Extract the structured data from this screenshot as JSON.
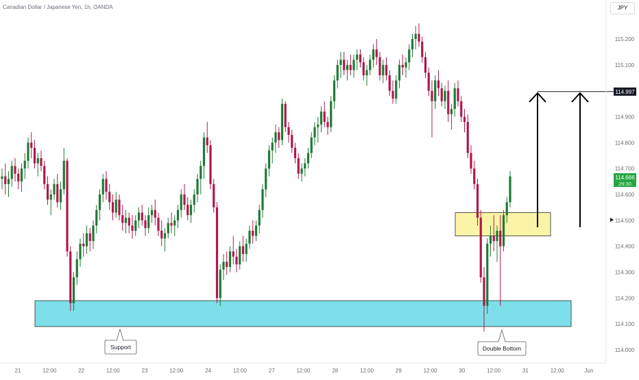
{
  "header": {
    "symbol_title": "Canadian Dollar / Japanese Yen, 1h, OANDA"
  },
  "toolbar": {
    "currency_button": "JPY"
  },
  "price_axis": {
    "ticks": [
      "115.200",
      "115.100",
      "114.900",
      "114.800",
      "114.700",
      "114.600",
      "114.500",
      "114.400",
      "114.300",
      "114.200",
      "114.100",
      "114.000"
    ],
    "badges": {
      "target": "114.997",
      "last_price": "114.666",
      "countdown": "29:30"
    },
    "colors": {
      "target": "#131722",
      "last_price": "#26a641"
    }
  },
  "time_axis": {
    "ticks": [
      "21",
      "12:00",
      "22",
      "12:00",
      "23",
      "12:00",
      "24",
      "12:00",
      "27",
      "12:00",
      "28",
      "12:00",
      "29",
      "12:00",
      "30",
      "12:00",
      "31",
      "12:00",
      "Jun"
    ]
  },
  "annotations": {
    "support_label": "Support",
    "double_bottom_label": "Double Bottom"
  },
  "colors": {
    "up_candle": "#1f7a34",
    "down_candle": "#b0174c",
    "support_zone": "#7ddfea",
    "resistance_zone": "#fbf3a6"
  },
  "chart_data": {
    "type": "candlestick",
    "title": "Canadian Dollar / Japanese Yen, 1h, OANDA",
    "ylim": [
      113.98,
      115.28
    ],
    "zones": [
      {
        "label": "Support",
        "y_range": [
          114.09,
          114.19
        ]
      },
      {
        "label": "",
        "y_range": [
          114.44,
          114.53
        ]
      }
    ],
    "target_level": 114.997,
    "last_price": 114.666,
    "series": [
      {
        "values": [
          [
            114.66,
            114.7,
            114.62,
            114.67
          ],
          [
            114.67,
            114.72,
            114.6,
            114.64
          ],
          [
            114.64,
            114.69,
            114.59,
            114.66
          ],
          [
            114.66,
            114.73,
            114.63,
            114.71
          ],
          [
            114.71,
            114.74,
            114.65,
            114.68
          ],
          [
            114.68,
            114.7,
            114.62,
            114.65
          ],
          [
            114.65,
            114.72,
            114.61,
            114.7
          ],
          [
            114.7,
            114.76,
            114.66,
            114.73
          ],
          [
            114.73,
            114.82,
            114.7,
            114.8
          ],
          [
            114.8,
            114.84,
            114.74,
            114.78
          ],
          [
            114.78,
            114.81,
            114.7,
            114.72
          ],
          [
            114.72,
            114.76,
            114.67,
            114.74
          ],
          [
            114.74,
            114.77,
            114.69,
            114.71
          ],
          [
            114.71,
            114.73,
            114.62,
            114.64
          ],
          [
            114.64,
            114.67,
            114.56,
            114.58
          ],
          [
            114.58,
            114.62,
            114.52,
            114.6
          ],
          [
            114.6,
            114.66,
            114.58,
            114.64
          ],
          [
            114.64,
            114.68,
            114.55,
            114.57
          ],
          [
            114.57,
            114.65,
            114.54,
            114.62
          ],
          [
            114.62,
            114.78,
            114.6,
            114.73
          ],
          [
            114.73,
            114.74,
            114.36,
            114.38
          ],
          [
            114.38,
            114.4,
            114.15,
            114.18
          ],
          [
            114.18,
            114.3,
            114.15,
            114.28
          ],
          [
            114.28,
            114.38,
            114.25,
            114.35
          ],
          [
            114.35,
            114.43,
            114.32,
            114.41
          ],
          [
            114.41,
            114.45,
            114.36,
            114.4
          ],
          [
            114.4,
            114.48,
            114.37,
            114.45
          ],
          [
            114.45,
            114.47,
            114.38,
            114.42
          ],
          [
            114.42,
            114.5,
            114.39,
            114.48
          ],
          [
            114.48,
            114.56,
            114.45,
            114.54
          ],
          [
            114.54,
            114.62,
            114.5,
            114.6
          ],
          [
            114.6,
            114.68,
            114.57,
            114.66
          ],
          [
            114.66,
            114.69,
            114.58,
            114.61
          ],
          [
            114.61,
            114.64,
            114.54,
            114.57
          ],
          [
            114.57,
            114.6,
            114.5,
            114.53
          ],
          [
            114.53,
            114.61,
            114.51,
            114.58
          ],
          [
            114.58,
            114.6,
            114.5,
            114.52
          ],
          [
            114.52,
            114.56,
            114.46,
            114.49
          ],
          [
            114.49,
            114.54,
            114.45,
            114.51
          ],
          [
            114.51,
            114.53,
            114.45,
            114.48
          ],
          [
            114.48,
            114.52,
            114.43,
            114.46
          ],
          [
            114.46,
            114.52,
            114.44,
            114.5
          ],
          [
            114.5,
            114.55,
            114.47,
            114.53
          ],
          [
            114.53,
            114.56,
            114.48,
            114.5
          ],
          [
            114.5,
            114.52,
            114.44,
            114.47
          ],
          [
            114.47,
            114.55,
            114.45,
            114.52
          ],
          [
            114.52,
            114.56,
            114.49,
            114.54
          ],
          [
            114.54,
            114.58,
            114.48,
            114.51
          ],
          [
            114.51,
            114.53,
            114.44,
            114.46
          ],
          [
            114.46,
            114.5,
            114.4,
            114.43
          ],
          [
            114.43,
            114.47,
            114.38,
            114.45
          ],
          [
            114.45,
            114.51,
            114.43,
            114.49
          ],
          [
            114.49,
            114.53,
            114.45,
            114.48
          ],
          [
            114.48,
            114.52,
            114.44,
            114.5
          ],
          [
            114.5,
            114.56,
            114.47,
            114.54
          ],
          [
            114.54,
            114.62,
            114.51,
            114.6
          ],
          [
            114.6,
            114.64,
            114.54,
            114.56
          ],
          [
            114.56,
            114.59,
            114.5,
            114.52
          ],
          [
            114.52,
            114.58,
            114.49,
            114.56
          ],
          [
            114.56,
            114.62,
            114.53,
            114.6
          ],
          [
            114.6,
            114.68,
            114.57,
            114.66
          ],
          [
            114.66,
            114.73,
            114.6,
            114.71
          ],
          [
            114.71,
            114.84,
            114.66,
            114.82
          ],
          [
            114.82,
            114.88,
            114.76,
            114.79
          ],
          [
            114.79,
            114.81,
            114.62,
            114.64
          ],
          [
            114.64,
            114.66,
            114.53,
            114.55
          ],
          [
            114.55,
            114.57,
            114.18,
            114.2
          ],
          [
            114.2,
            114.33,
            114.17,
            114.31
          ],
          [
            114.31,
            114.37,
            114.27,
            114.34
          ],
          [
            114.34,
            114.38,
            114.29,
            114.32
          ],
          [
            114.32,
            114.4,
            114.3,
            114.38
          ],
          [
            114.38,
            114.44,
            114.33,
            114.36
          ],
          [
            114.36,
            114.39,
            114.3,
            114.33
          ],
          [
            114.33,
            114.42,
            114.31,
            114.4
          ],
          [
            114.4,
            114.44,
            114.34,
            114.37
          ],
          [
            114.37,
            114.43,
            114.34,
            114.41
          ],
          [
            114.41,
            114.48,
            114.39,
            114.46
          ],
          [
            114.46,
            114.5,
            114.41,
            114.44
          ],
          [
            114.44,
            114.5,
            114.42,
            114.48
          ],
          [
            114.48,
            114.56,
            114.45,
            114.54
          ],
          [
            114.54,
            114.64,
            114.51,
            114.62
          ],
          [
            114.62,
            114.72,
            114.59,
            114.7
          ],
          [
            114.7,
            114.79,
            114.67,
            114.77
          ],
          [
            114.77,
            114.82,
            114.72,
            114.8
          ],
          [
            114.8,
            114.87,
            114.76,
            114.84
          ],
          [
            114.84,
            114.86,
            114.78,
            114.81
          ],
          [
            114.81,
            114.97,
            114.79,
            114.95
          ],
          [
            114.95,
            114.96,
            114.84,
            114.86
          ],
          [
            114.86,
            114.88,
            114.8,
            114.83
          ],
          [
            114.83,
            114.85,
            114.76,
            114.78
          ],
          [
            114.78,
            114.8,
            114.72,
            114.74
          ],
          [
            114.74,
            114.76,
            114.66,
            114.68
          ],
          [
            114.68,
            114.72,
            114.65,
            114.7
          ],
          [
            114.7,
            114.74,
            114.67,
            114.72
          ],
          [
            114.72,
            114.78,
            114.7,
            114.76
          ],
          [
            114.76,
            114.84,
            114.74,
            114.82
          ],
          [
            114.82,
            114.88,
            114.79,
            114.86
          ],
          [
            114.86,
            114.9,
            114.8,
            114.87
          ],
          [
            114.87,
            114.94,
            114.84,
            114.92
          ],
          [
            114.92,
            114.96,
            114.86,
            114.88
          ],
          [
            114.88,
            114.9,
            114.83,
            114.86
          ],
          [
            114.86,
            114.98,
            114.84,
            114.96
          ],
          [
            114.96,
            115.06,
            114.93,
            115.04
          ],
          [
            115.04,
            115.12,
            115.01,
            115.1
          ],
          [
            115.1,
            115.15,
            115.05,
            115.12
          ],
          [
            115.12,
            115.15,
            115.06,
            115.08
          ],
          [
            115.08,
            115.12,
            115.04,
            115.1
          ],
          [
            115.1,
            115.14,
            115.06,
            115.08
          ],
          [
            115.08,
            115.14,
            115.05,
            115.12
          ],
          [
            115.12,
            115.16,
            115.08,
            115.14
          ],
          [
            115.14,
            115.16,
            115.09,
            115.11
          ],
          [
            115.11,
            115.13,
            115.04,
            115.06
          ],
          [
            115.06,
            115.1,
            115.02,
            115.08
          ],
          [
            115.08,
            115.14,
            115.06,
            115.12
          ],
          [
            115.12,
            115.18,
            115.09,
            115.16
          ],
          [
            115.16,
            115.2,
            115.1,
            115.13
          ],
          [
            115.13,
            115.15,
            115.04,
            115.06
          ],
          [
            115.06,
            115.12,
            115.03,
            115.1
          ],
          [
            115.1,
            115.13,
            115.04,
            115.06
          ],
          [
            115.06,
            115.08,
            114.98,
            115.0
          ],
          [
            115.0,
            115.04,
            114.95,
            114.97
          ],
          [
            114.97,
            115.06,
            114.95,
            115.04
          ],
          [
            115.04,
            115.12,
            115.01,
            115.1
          ],
          [
            115.1,
            115.14,
            115.06,
            115.09
          ],
          [
            115.09,
            115.13,
            115.05,
            115.11
          ],
          [
            115.11,
            115.18,
            115.08,
            115.16
          ],
          [
            115.16,
            115.22,
            115.13,
            115.2
          ],
          [
            115.2,
            115.25,
            115.16,
            115.22
          ],
          [
            115.22,
            115.26,
            115.17,
            115.19
          ],
          [
            115.19,
            115.21,
            115.11,
            115.13
          ],
          [
            115.13,
            115.15,
            115.05,
            115.07
          ],
          [
            115.07,
            115.09,
            114.98,
            115.0
          ],
          [
            115.0,
            115.04,
            114.82,
            114.96
          ],
          [
            114.96,
            115.06,
            114.93,
            115.04
          ],
          [
            115.04,
            115.08,
            114.98,
            115.01
          ],
          [
            115.01,
            115.03,
            114.94,
            114.96
          ],
          [
            114.96,
            115.02,
            114.93,
            115.0
          ],
          [
            115.0,
            115.04,
            114.88,
            114.91
          ],
          [
            114.91,
            114.95,
            114.85,
            114.93
          ],
          [
            114.93,
            115.03,
            114.9,
            115.01
          ],
          [
            115.01,
            115.04,
            114.94,
            114.96
          ],
          [
            114.96,
            114.98,
            114.88,
            114.9
          ],
          [
            114.9,
            114.93,
            114.84,
            114.88
          ],
          [
            114.88,
            114.91,
            114.74,
            114.76
          ],
          [
            114.76,
            114.79,
            114.68,
            114.7
          ],
          [
            114.7,
            114.73,
            114.62,
            114.64
          ],
          [
            114.64,
            114.66,
            114.48,
            114.51
          ],
          [
            114.51,
            114.54,
            114.26,
            114.28
          ],
          [
            114.28,
            114.32,
            114.07,
            114.17
          ],
          [
            114.17,
            114.43,
            114.14,
            114.41
          ],
          [
            114.41,
            114.48,
            114.36,
            114.44
          ],
          [
            114.44,
            114.52,
            114.38,
            114.42
          ],
          [
            114.42,
            114.48,
            114.34,
            114.46
          ],
          [
            114.46,
            114.52,
            114.17,
            114.4
          ],
          [
            114.4,
            114.54,
            114.38,
            114.52
          ],
          [
            114.52,
            114.59,
            114.49,
            114.57
          ],
          [
            114.57,
            114.69,
            114.55,
            114.67
          ]
        ]
      }
    ]
  }
}
